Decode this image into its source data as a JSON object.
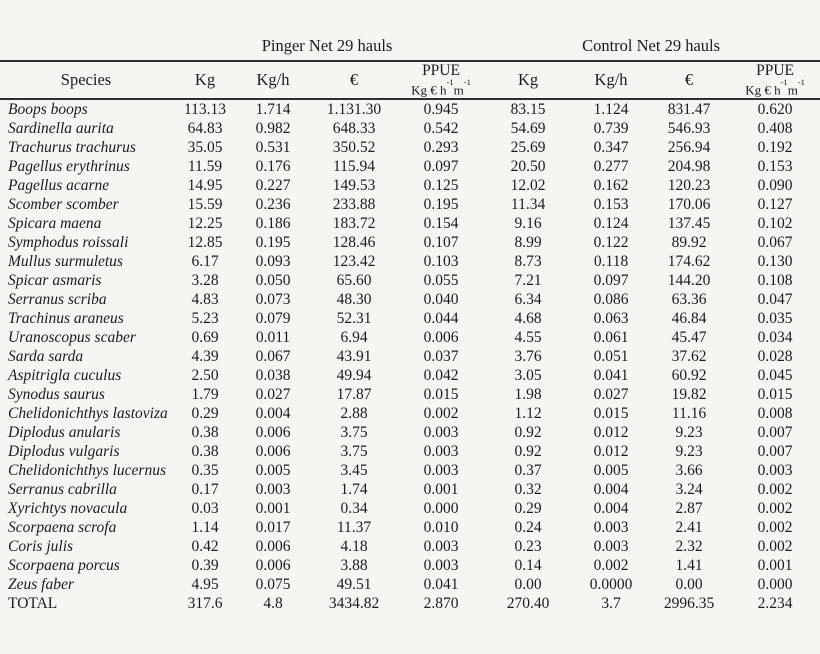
{
  "page": {
    "background": "#f6f5f2",
    "text_color": "#1c1c1c",
    "rule_color": "#2e2e2e"
  },
  "table": {
    "group_headers": {
      "pinger": "Pinger Net 29 hauls",
      "control": "Control Net 29 hauls"
    },
    "column_headers": {
      "species": "Species",
      "kg": "Kg",
      "kg_per_h": "Kg/h",
      "euro": "€",
      "ppue": "PPUE",
      "ppue_unit": {
        "base1": "Kg € h",
        "sup1": "-1",
        "base2": "m",
        "sup2": "-1"
      }
    },
    "total_label": "TOTAL",
    "rows": [
      {
        "species": "Boops boops",
        "values": [
          "113.13",
          "1.714",
          "1.131.30",
          "0.945",
          "83.15",
          "1.124",
          "831.47",
          "0.620"
        ]
      },
      {
        "species": "Sardinella aurita",
        "values": [
          "64.83",
          "0.982",
          "648.33",
          "0.542",
          "54.69",
          "0.739",
          "546.93",
          "0.408"
        ]
      },
      {
        "species": "Trachurus trachurus",
        "values": [
          "35.05",
          "0.531",
          "350.52",
          "0.293",
          "25.69",
          "0.347",
          "256.94",
          "0.192"
        ]
      },
      {
        "species": "Pagellus erythrinus",
        "values": [
          "11.59",
          "0.176",
          "115.94",
          "0.097",
          "20.50",
          "0.277",
          "204.98",
          "0.153"
        ]
      },
      {
        "species": "Pagellus acarne",
        "values": [
          "14.95",
          "0.227",
          "149.53",
          "0.125",
          "12.02",
          "0.162",
          "120.23",
          "0.090"
        ]
      },
      {
        "species": "Scomber scomber",
        "values": [
          "15.59",
          "0.236",
          "233.88",
          "0.195",
          "11.34",
          "0.153",
          "170.06",
          "0.127"
        ]
      },
      {
        "species": "Spicara maena",
        "values": [
          "12.25",
          "0.186",
          "183.72",
          "0.154",
          "9.16",
          "0.124",
          "137.45",
          "0.102"
        ]
      },
      {
        "species": "Symphodus roissali",
        "values": [
          "12.85",
          "0.195",
          "128.46",
          "0.107",
          "8.99",
          "0.122",
          "89.92",
          "0.067"
        ]
      },
      {
        "species": "Mullus surmuletus",
        "values": [
          "6.17",
          "0.093",
          "123.42",
          "0.103",
          "8.73",
          "0.118",
          "174.62",
          "0.130"
        ]
      },
      {
        "species": "Spicar asmaris",
        "values": [
          "3.28",
          "0.050",
          "65.60",
          "0.055",
          "7.21",
          "0.097",
          "144.20",
          "0.108"
        ]
      },
      {
        "species": "Serranus scriba",
        "values": [
          "4.83",
          "0.073",
          "48.30",
          "0.040",
          "6.34",
          "0.086",
          "63.36",
          "0.047"
        ]
      },
      {
        "species": "Trachinus araneus",
        "values": [
          "5.23",
          "0.079",
          "52.31",
          "0.044",
          "4.68",
          "0.063",
          "46.84",
          "0.035"
        ]
      },
      {
        "species": "Uranoscopus scaber",
        "values": [
          "0.69",
          "0.011",
          "6.94",
          "0.006",
          "4.55",
          "0.061",
          "45.47",
          "0.034"
        ]
      },
      {
        "species": "Sarda sarda",
        "values": [
          "4.39",
          "0.067",
          "43.91",
          "0.037",
          "3.76",
          "0.051",
          "37.62",
          "0.028"
        ]
      },
      {
        "species": "Aspitrigla cuculus",
        "values": [
          "2.50",
          "0.038",
          "49.94",
          "0.042",
          "3.05",
          "0.041",
          "60.92",
          "0.045"
        ]
      },
      {
        "species": "Synodus saurus",
        "values": [
          "1.79",
          "0.027",
          "17.87",
          "0.015",
          "1.98",
          "0.027",
          "19.82",
          "0.015"
        ]
      },
      {
        "species": "Chelidonichthys lastoviza",
        "values": [
          "0.29",
          "0.004",
          "2.88",
          "0.002",
          "1.12",
          "0.015",
          "11.16",
          "0.008"
        ]
      },
      {
        "species": "Diplodus anularis",
        "values": [
          "0.38",
          "0.006",
          "3.75",
          "0.003",
          "0.92",
          "0.012",
          "9.23",
          "0.007"
        ]
      },
      {
        "species": "Diplodus vulgaris",
        "values": [
          "0.38",
          "0.006",
          "3.75",
          "0.003",
          "0.92",
          "0.012",
          "9.23",
          "0.007"
        ]
      },
      {
        "species": "Chelidonichthys lucernus",
        "values": [
          "0.35",
          "0.005",
          "3.45",
          "0.003",
          "0.37",
          "0.005",
          "3.66",
          "0.003"
        ]
      },
      {
        "species": "Serranus cabrilla",
        "values": [
          "0.17",
          "0.003",
          "1.74",
          "0.001",
          "0.32",
          "0.004",
          "3.24",
          "0.002"
        ]
      },
      {
        "species": "Xyrichtys novacula",
        "values": [
          "0.03",
          "0.001",
          "0.34",
          "0.000",
          "0.29",
          "0.004",
          "2.87",
          "0.002"
        ]
      },
      {
        "species": "Scorpaena scrofa",
        "values": [
          "1.14",
          "0.017",
          "11.37",
          "0.010",
          "0.24",
          "0.003",
          "2.41",
          "0.002"
        ]
      },
      {
        "species": "Coris julis",
        "values": [
          "0.42",
          "0.006",
          "4.18",
          "0.003",
          "0.23",
          "0.003",
          "2.32",
          "0.002"
        ]
      },
      {
        "species": "Scorpaena porcus",
        "values": [
          "0.39",
          "0.006",
          "3.88",
          "0.003",
          "0.14",
          "0.002",
          "1.41",
          "0.001"
        ]
      },
      {
        "species": "Zeus faber",
        "values": [
          "4.95",
          "0.075",
          "49.51",
          "0.041",
          "0.00",
          "0.0000",
          "0.00",
          "0.000"
        ]
      },
      {
        "species": "TOTAL",
        "values": [
          "317.6",
          "4.8",
          "3434.82",
          "2.870",
          "270.40",
          "3.7",
          "2996.35",
          "2.234"
        ]
      }
    ]
  }
}
